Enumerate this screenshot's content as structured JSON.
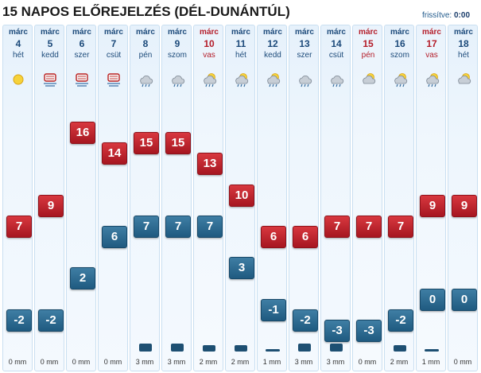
{
  "title": "15 NAPOS ELŐREJELZÉS (DÉL-DUNÁNTÚL)",
  "updated": {
    "label": "frissítve:",
    "value": "0:00"
  },
  "temp_scale": {
    "max": 16,
    "min": -3
  },
  "colors": {
    "max": "#c0202a",
    "min": "#2a6a92",
    "weekend": "#b41e2a",
    "weekday": "#1c4a7a"
  },
  "days": [
    {
      "month": "márc",
      "day": "4",
      "name": "hét",
      "weekend": false,
      "icon": "sun-icon",
      "max": "7",
      "min": "-2",
      "precip": "0 mm",
      "precip_level": 0
    },
    {
      "month": "márc",
      "day": "5",
      "name": "kedd",
      "weekend": false,
      "icon": "fog-icon",
      "max": "9",
      "min": "-2",
      "precip": "0 mm",
      "precip_level": 0
    },
    {
      "month": "márc",
      "day": "6",
      "name": "szer",
      "weekend": false,
      "icon": "fog-icon",
      "max": "16",
      "min": "2",
      "precip": "0 mm",
      "precip_level": 0
    },
    {
      "month": "márc",
      "day": "7",
      "name": "csüt",
      "weekend": false,
      "icon": "fog-icon",
      "max": "14",
      "min": "6",
      "precip": "0 mm",
      "precip_level": 0
    },
    {
      "month": "márc",
      "day": "8",
      "name": "pén",
      "weekend": false,
      "icon": "cloud-rain-icon",
      "max": "15",
      "min": "7",
      "precip": "3 mm",
      "precip_level": 3
    },
    {
      "month": "márc",
      "day": "9",
      "name": "szom",
      "weekend": false,
      "icon": "cloud-rain-icon",
      "max": "15",
      "min": "7",
      "precip": "3 mm",
      "precip_level": 3
    },
    {
      "month": "márc",
      "day": "10",
      "name": "vas",
      "weekend": true,
      "icon": "sun-cloud-rain-icon",
      "max": "13",
      "min": "7",
      "precip": "2 mm",
      "precip_level": 2
    },
    {
      "month": "márc",
      "day": "11",
      "name": "hét",
      "weekend": false,
      "icon": "sun-cloud-rain-icon",
      "max": "10",
      "min": "3",
      "precip": "2 mm",
      "precip_level": 2
    },
    {
      "month": "márc",
      "day": "12",
      "name": "kedd",
      "weekend": false,
      "icon": "sun-cloud-rain-icon",
      "max": "6",
      "min": "-1",
      "precip": "1 mm",
      "precip_level": 1
    },
    {
      "month": "márc",
      "day": "13",
      "name": "szer",
      "weekend": false,
      "icon": "cloud-rain-icon",
      "max": "6",
      "min": "-2",
      "precip": "3 mm",
      "precip_level": 3
    },
    {
      "month": "márc",
      "day": "14",
      "name": "csüt",
      "weekend": false,
      "icon": "cloud-rain-icon",
      "max": "7",
      "min": "-3",
      "precip": "3 mm",
      "precip_level": 3
    },
    {
      "month": "márc",
      "day": "15",
      "name": "pén",
      "weekend": true,
      "icon": "sun-cloud-icon",
      "max": "7",
      "min": "-3",
      "precip": "0 mm",
      "precip_level": 0
    },
    {
      "month": "márc",
      "day": "16",
      "name": "szom",
      "weekend": false,
      "icon": "sun-cloud-rain-icon",
      "max": "7",
      "min": "-2",
      "precip": "2 mm",
      "precip_level": 2
    },
    {
      "month": "márc",
      "day": "17",
      "name": "vas",
      "weekend": true,
      "icon": "sun-cloud-rain-icon",
      "max": "9",
      "min": "0",
      "precip": "1 mm",
      "precip_level": 1
    },
    {
      "month": "márc",
      "day": "18",
      "name": "hét",
      "weekend": false,
      "icon": "sun-cloud-icon",
      "max": "9",
      "min": "0",
      "precip": "0 mm",
      "precip_level": 0
    }
  ]
}
